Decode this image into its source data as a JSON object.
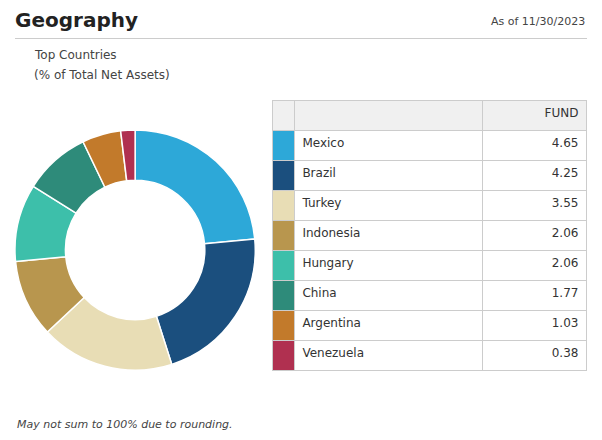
{
  "chart_data": {
    "type": "donut",
    "title": "Geography",
    "date_label": "As of 11/30/2023",
    "subtitle": [
      "Top Countries",
      "(% of Total Net Assets)"
    ],
    "footnote": "May not sum to 100% due to rounding.",
    "table_header": "FUND",
    "categories": [
      "Mexico",
      "Brazil",
      "Turkey",
      "Indonesia",
      "Hungary",
      "China",
      "Argentina",
      "Venezuela"
    ],
    "values": [
      4.65,
      4.25,
      3.55,
      2.06,
      2.06,
      1.77,
      1.03,
      0.38
    ],
    "colors": [
      "#2da8d8",
      "#1b4f7e",
      "#e8ddb5",
      "#b8964e",
      "#3dbfaa",
      "#2e8b7a",
      "#c27a2b",
      "#b03050"
    ]
  }
}
